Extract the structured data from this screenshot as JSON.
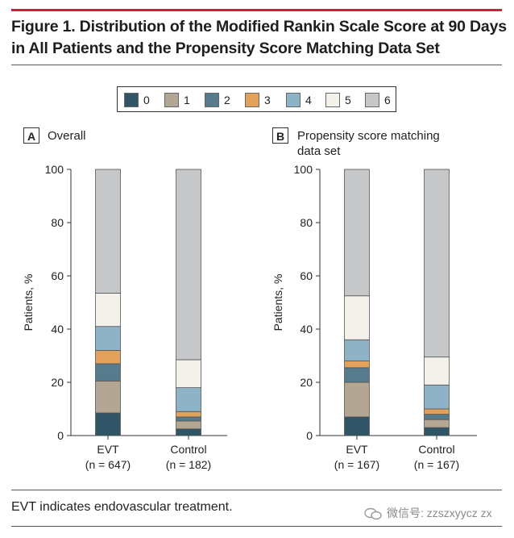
{
  "figure": {
    "title_line1": "Figure 1. Distribution of the Modified Rankin Scale Score at 90 Days",
    "title_line2": "in All Patients and the Propensity Score Matching Data Set",
    "footnote": "EVT indicates endovascular treatment.",
    "watermark": "微信号: zzszxyycz zx"
  },
  "legend": {
    "items": [
      {
        "label": "0",
        "color": "#2f5566"
      },
      {
        "label": "1",
        "color": "#b3a794"
      },
      {
        "label": "2",
        "color": "#557b8c"
      },
      {
        "label": "3",
        "color": "#e3a25c"
      },
      {
        "label": "4",
        "color": "#8fb3c6"
      },
      {
        "label": "5",
        "color": "#f3f1ea"
      },
      {
        "label": "6",
        "color": "#c6c7c9"
      }
    ]
  },
  "panels": {
    "A": {
      "tag": "A",
      "title_line1": "Overall",
      "title_line2": ""
    },
    "B": {
      "tag": "B",
      "title_line1": "Propensity score matching",
      "title_line2": "data set"
    }
  },
  "chart_data": [
    {
      "type": "bar",
      "stacked": true,
      "panel": "A",
      "title": "Overall",
      "ylabel": "Patients, %",
      "ylim": [
        0,
        100
      ],
      "yticks": [
        0,
        20,
        40,
        60,
        80,
        100
      ],
      "categories": [
        "EVT",
        "Control"
      ],
      "category_sublabels": [
        "(n = 647)",
        "(n = 182)"
      ],
      "series": [
        {
          "name": "0",
          "values": [
            8.5,
            2.5
          ]
        },
        {
          "name": "1",
          "values": [
            12.0,
            3.0
          ]
        },
        {
          "name": "2",
          "values": [
            6.5,
            1.5
          ]
        },
        {
          "name": "3",
          "values": [
            5.0,
            2.0
          ]
        },
        {
          "name": "4",
          "values": [
            9.0,
            9.0
          ]
        },
        {
          "name": "5",
          "values": [
            12.5,
            10.5
          ]
        },
        {
          "name": "6",
          "values": [
            46.5,
            71.5
          ]
        }
      ]
    },
    {
      "type": "bar",
      "stacked": true,
      "panel": "B",
      "title": "Propensity score matching data set",
      "ylabel": "Patients, %",
      "ylim": [
        0,
        100
      ],
      "yticks": [
        0,
        20,
        40,
        60,
        80,
        100
      ],
      "categories": [
        "EVT",
        "Control"
      ],
      "category_sublabels": [
        "(n = 167)",
        "(n = 167)"
      ],
      "series": [
        {
          "name": "0",
          "values": [
            7.0,
            3.0
          ]
        },
        {
          "name": "1",
          "values": [
            13.0,
            3.0
          ]
        },
        {
          "name": "2",
          "values": [
            5.5,
            2.0
          ]
        },
        {
          "name": "3",
          "values": [
            2.5,
            2.0
          ]
        },
        {
          "name": "4",
          "values": [
            8.0,
            9.0
          ]
        },
        {
          "name": "5",
          "values": [
            16.5,
            10.5
          ]
        },
        {
          "name": "6",
          "values": [
            47.5,
            70.5
          ]
        }
      ]
    }
  ]
}
